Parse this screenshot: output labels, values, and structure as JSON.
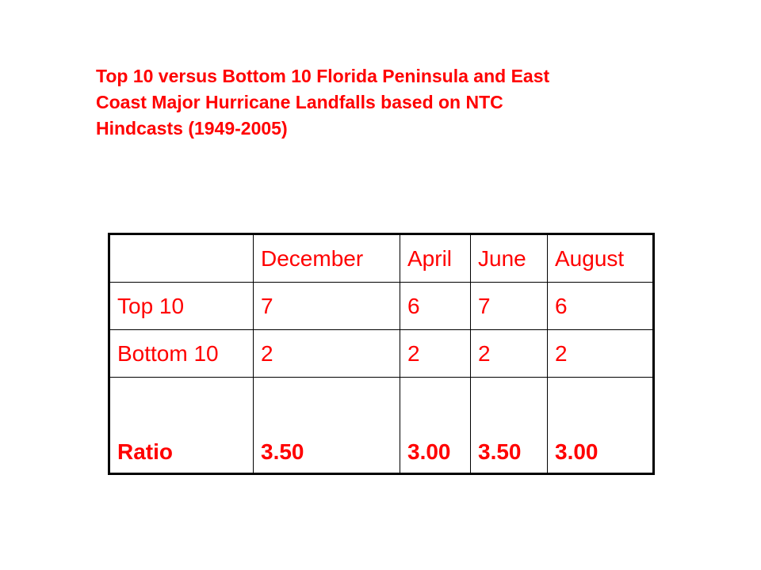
{
  "title": {
    "lines": [
      "Top 10 versus Bottom 10 Florida Peninsula and East",
      "Coast Major Hurricane Landfalls based on NTC",
      "Hindcasts (1949-2005)"
    ]
  },
  "table": {
    "header": [
      "",
      "December",
      "April",
      "June",
      "August"
    ],
    "rows": [
      [
        "Top 10",
        "7",
        "6",
        "7",
        "6"
      ],
      [
        "Bottom 10",
        "2",
        "2",
        "2",
        "2"
      ],
      [
        "Ratio",
        "3.50",
        "3.00",
        "3.50",
        "3.00"
      ]
    ]
  },
  "colors": {
    "text": "#ff0000",
    "border": "#000000",
    "background": "#ffffff"
  }
}
